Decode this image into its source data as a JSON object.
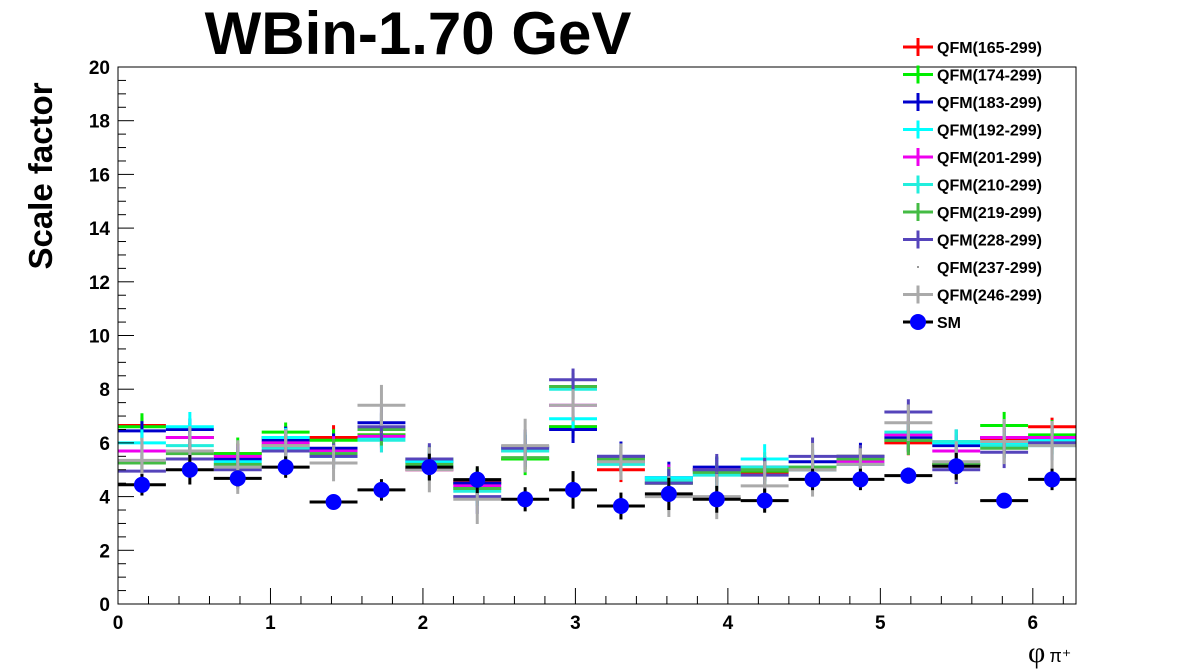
{
  "chart_data": {
    "type": "scatter",
    "title": "WBin-1.70 GeV",
    "xlabel": "φ",
    "xlabel_sub": "π⁺",
    "ylabel": "Scale factor",
    "xlim": [
      0,
      6.2832
    ],
    "ylim": [
      0,
      20
    ],
    "x_ticks": [
      "0",
      "1",
      "2",
      "3",
      "4",
      "5",
      "6"
    ],
    "y_ticks": [
      "0",
      "2",
      "4",
      "6",
      "8",
      "10",
      "12",
      "14",
      "16",
      "18",
      "20"
    ],
    "grid": false,
    "legend_placement": "top-right",
    "bins": 20,
    "series": [
      {
        "name": "QFM(165-299)",
        "color": "#ff0000",
        "err": 0.5,
        "values": [
          6.65,
          6.2,
          5.6,
          6.2,
          6.2,
          6.3,
          5.0,
          4.55,
          5.4,
          6.6,
          5.0,
          4.5,
          5.0,
          4.9,
          5.0,
          5.5,
          6.0,
          5.2,
          6.15,
          6.6
        ]
      },
      {
        "name": "QFM(174-299)",
        "color": "#00ee00",
        "err": 0.6,
        "values": [
          6.6,
          6.2,
          5.6,
          6.4,
          6.1,
          6.3,
          5.4,
          4.5,
          5.4,
          6.6,
          5.3,
          4.5,
          5.0,
          4.95,
          5.0,
          5.5,
          6.1,
          5.2,
          6.65,
          6.3
        ]
      },
      {
        "name": "QFM(183-299)",
        "color": "#0000cc",
        "err": 0.6,
        "values": [
          6.45,
          6.5,
          5.4,
          6.1,
          5.8,
          6.75,
          5.3,
          4.5,
          5.85,
          6.5,
          5.5,
          4.7,
          5.1,
          5.1,
          5.3,
          5.5,
          6.2,
          5.9,
          6.2,
          6.2
        ]
      },
      {
        "name": "QFM(192-299)",
        "color": "#00ffff",
        "err": 0.6,
        "values": [
          6.0,
          6.6,
          5.3,
          6.2,
          5.5,
          6.2,
          5.3,
          4.3,
          5.8,
          6.9,
          5.4,
          4.7,
          4.9,
          5.4,
          5.1,
          5.2,
          6.3,
          6.0,
          6.0,
          6.1
        ]
      },
      {
        "name": "QFM(201-299)",
        "color": "#ee00ee",
        "err": 0.6,
        "values": [
          5.7,
          6.2,
          5.5,
          6.0,
          5.7,
          6.25,
          5.0,
          4.4,
          5.7,
          7.4,
          5.3,
          4.6,
          5.0,
          5.0,
          5.0,
          5.3,
          6.3,
          5.7,
          6.2,
          6.2
        ]
      },
      {
        "name": "QFM(210-299)",
        "color": "#22eedd",
        "err": 0.6,
        "values": [
          5.3,
          5.9,
          5.1,
          5.8,
          5.6,
          6.1,
          5.1,
          4.2,
          5.7,
          8.0,
          5.2,
          4.6,
          4.8,
          5.1,
          5.0,
          5.2,
          6.4,
          6.05,
          5.9,
          5.9
        ]
      },
      {
        "name": "QFM(219-299)",
        "color": "#44bb44",
        "err": 0.6,
        "values": [
          5.25,
          5.6,
          5.2,
          5.9,
          5.6,
          6.5,
          5.2,
          4.3,
          5.45,
          8.1,
          5.4,
          4.5,
          4.9,
          5.0,
          5.1,
          5.4,
          6.1,
          5.2,
          5.8,
          6.0
        ]
      },
      {
        "name": "QFM(228-299)",
        "color": "#5544bb",
        "err": 0.7,
        "values": [
          4.95,
          5.4,
          5.0,
          5.7,
          5.5,
          6.6,
          5.4,
          4.0,
          5.8,
          8.35,
          5.5,
          4.5,
          5.0,
          4.8,
          5.5,
          5.5,
          7.15,
          5.0,
          5.65,
          6.0
        ]
      },
      {
        "name": "QFM(237-299)",
        "color": "#777777",
        "err": 0,
        "values": [
          5.5,
          5.8,
          5.3,
          6.0,
          5.6,
          6.4,
          5.2,
          4.3,
          5.7,
          7.5,
          5.3,
          4.5,
          4.9,
          5.0,
          5.1,
          5.3,
          6.4,
          5.5,
          6.0,
          6.1
        ]
      },
      {
        "name": "QFM(246-299)",
        "color": "#aaaaaa",
        "err": 1.0,
        "values": [
          5.35,
          5.7,
          5.1,
          5.9,
          5.25,
          7.4,
          5.0,
          3.9,
          5.9,
          7.4,
          5.3,
          4.0,
          4.0,
          4.4,
          5.0,
          5.2,
          6.75,
          5.3,
          6.05,
          5.9
        ]
      },
      {
        "name": "SM",
        "color": "#0000ff",
        "marker": "circle",
        "values": [
          4.44,
          5.0,
          4.68,
          5.1,
          3.8,
          4.25,
          5.1,
          4.63,
          3.9,
          4.25,
          3.65,
          4.1,
          3.9,
          3.85,
          4.64,
          4.64,
          4.78,
          5.13,
          3.85,
          4.64
        ],
        "errs": [
          0.4,
          0.55,
          0.3,
          0.4,
          0.2,
          0.4,
          0.5,
          0.5,
          0.45,
          0.7,
          0.5,
          0.6,
          0.5,
          0.45,
          0.4,
          0.4,
          0.3,
          0.5,
          0.2,
          0.4
        ]
      }
    ]
  }
}
